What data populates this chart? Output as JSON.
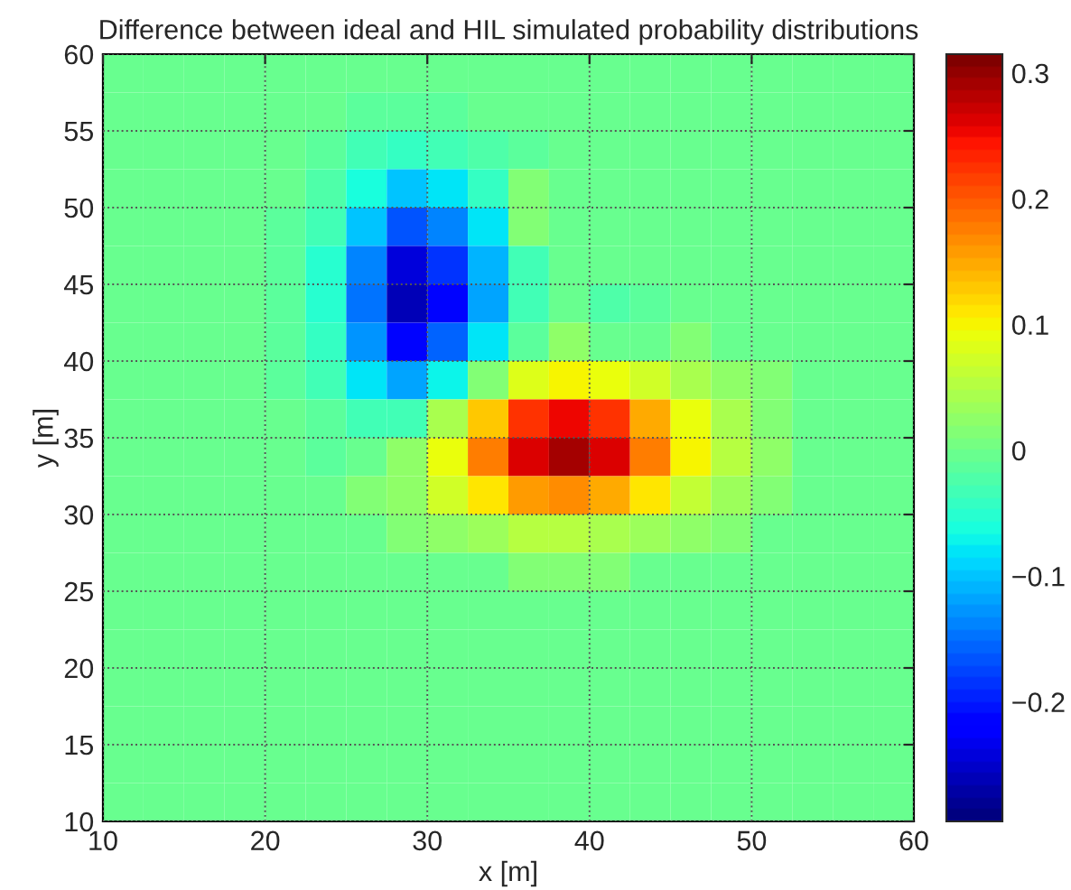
{
  "chart_data": {
    "type": "heatmap",
    "title": "Difference between ideal and HIL simulated probability distributions",
    "xlabel": "x [m]",
    "ylabel": "y [m]",
    "xlim": [
      10,
      60
    ],
    "ylim": [
      10,
      60
    ],
    "xticks": [
      10,
      20,
      30,
      40,
      50,
      60
    ],
    "yticks": [
      10,
      15,
      20,
      25,
      30,
      35,
      40,
      45,
      50,
      55,
      60
    ],
    "grid": true,
    "clim": [
      -0.295,
      0.315
    ],
    "cticks": [
      {
        "value": -0.2,
        "label": "−0.2"
      },
      {
        "value": -0.1,
        "label": "−0.1"
      },
      0,
      0.1,
      0.2,
      0.3
    ],
    "cells": [
      [
        0,
        0,
        0,
        0,
        0,
        0,
        0,
        0,
        0,
        0,
        0,
        0,
        0,
        0,
        0,
        0,
        0,
        0,
        0,
        0
      ],
      [
        0,
        0,
        0,
        0,
        0,
        0,
        -0.01,
        -0.01,
        -0.01,
        0,
        0,
        0,
        0,
        0,
        0,
        0,
        0,
        0,
        0,
        0
      ],
      [
        0,
        0,
        0,
        0,
        0,
        -0.01,
        -0.03,
        -0.04,
        -0.03,
        -0.02,
        -0.01,
        0,
        0,
        0,
        0,
        0,
        0,
        0,
        0,
        0
      ],
      [
        0,
        0,
        0,
        0,
        0,
        -0.02,
        -0.06,
        -0.1,
        -0.08,
        -0.04,
        0.01,
        0,
        0,
        0,
        0,
        0,
        0,
        0,
        0,
        0
      ],
      [
        0,
        0,
        0,
        0,
        -0.01,
        -0.03,
        -0.1,
        -0.17,
        -0.14,
        -0.08,
        0.01,
        0,
        0,
        0,
        0,
        0,
        0,
        0,
        0,
        0
      ],
      [
        0,
        0,
        0,
        0,
        -0.01,
        -0.05,
        -0.14,
        -0.24,
        -0.19,
        -0.11,
        -0.03,
        0,
        0,
        0,
        0,
        0,
        0,
        0,
        0,
        0
      ],
      [
        0,
        0,
        0,
        0,
        -0.01,
        -0.05,
        -0.15,
        -0.26,
        -0.21,
        -0.12,
        -0.03,
        0,
        -0.02,
        -0.01,
        0,
        0,
        0,
        0,
        0,
        0
      ],
      [
        0,
        0,
        0,
        0,
        -0.01,
        -0.04,
        -0.13,
        -0.21,
        -0.16,
        -0.08,
        -0.01,
        0.02,
        0,
        0,
        0.01,
        0,
        0,
        0,
        0,
        0
      ],
      [
        0,
        0,
        0,
        0,
        -0.01,
        -0.03,
        -0.08,
        -0.12,
        -0.07,
        0.01,
        0.08,
        0.1,
        0.09,
        0.07,
        0.04,
        0.02,
        0.01,
        0,
        0,
        0
      ],
      [
        0,
        0,
        0,
        0,
        0,
        -0.01,
        -0.03,
        -0.03,
        0.04,
        0.13,
        0.22,
        0.25,
        0.22,
        0.15,
        0.09,
        0.04,
        0.01,
        0,
        0,
        0
      ],
      [
        0,
        0,
        0,
        0,
        0,
        -0.01,
        0,
        0.02,
        0.09,
        0.18,
        0.26,
        0.29,
        0.26,
        0.18,
        0.1,
        0.05,
        0.02,
        0,
        0,
        0
      ],
      [
        0,
        0,
        0,
        0,
        0,
        0,
        0.01,
        0.02,
        0.07,
        0.11,
        0.16,
        0.17,
        0.15,
        0.11,
        0.06,
        0.03,
        0.01,
        0,
        0,
        0
      ],
      [
        0,
        0,
        0,
        0,
        0,
        0,
        0,
        0.01,
        0.02,
        0.03,
        0.05,
        0.05,
        0.04,
        0.03,
        0.02,
        0.01,
        0,
        0,
        0,
        0
      ],
      [
        0,
        0,
        0,
        0,
        0,
        0,
        0,
        0,
        0,
        0,
        0.01,
        0.01,
        0.01,
        0,
        0,
        0,
        0,
        0,
        0,
        0
      ],
      [
        0,
        0,
        0,
        0,
        0,
        0,
        0,
        0,
        0,
        0,
        0,
        0,
        0,
        0,
        0,
        0,
        0,
        0,
        0,
        0
      ],
      [
        0,
        0,
        0,
        0,
        0,
        0,
        0,
        0,
        0,
        0,
        0,
        0,
        0,
        0,
        0,
        0,
        0,
        0,
        0,
        0
      ],
      [
        0,
        0,
        0,
        0,
        0,
        0,
        0,
        0,
        0,
        0,
        0,
        0,
        0,
        0,
        0,
        0,
        0,
        0,
        0,
        0
      ],
      [
        0,
        0,
        0,
        0,
        0,
        0,
        0,
        0,
        0,
        0,
        0,
        0,
        0,
        0,
        0,
        0,
        0,
        0,
        0,
        0
      ],
      [
        0,
        0,
        0,
        0,
        0,
        0,
        0,
        0,
        0,
        0,
        0,
        0,
        0,
        0,
        0,
        0,
        0,
        0,
        0,
        0
      ],
      [
        0,
        0,
        0,
        0,
        0,
        0,
        0,
        0,
        0,
        0,
        0,
        0,
        0,
        0,
        0,
        0,
        0,
        0,
        0,
        0
      ]
    ]
  }
}
